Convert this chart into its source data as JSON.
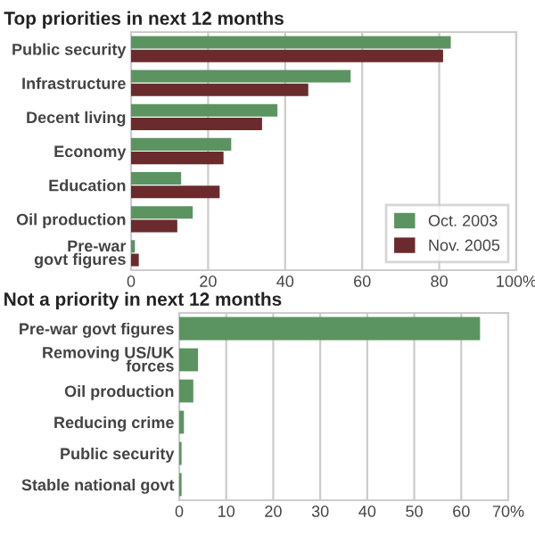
{
  "chart_data": [
    {
      "type": "bar",
      "orientation": "horizontal",
      "title": "Top priorities in next 12 months",
      "categories": [
        "Public security",
        "Infrastructure",
        "Decent living",
        "Economy",
        "Education",
        "Oil production",
        "Pre-war\ngovt figures"
      ],
      "series": [
        {
          "name": "Oct. 2003",
          "color": "#5b9461",
          "values": [
            83,
            57,
            38,
            26,
            13,
            16,
            1
          ]
        },
        {
          "name": "Nov. 2005",
          "color": "#6b2a2c",
          "values": [
            81,
            46,
            34,
            24,
            23,
            12,
            2
          ]
        }
      ],
      "xlim": [
        0,
        100
      ],
      "xticks": [
        0,
        20,
        40,
        60,
        80,
        {
          "value": 100,
          "label": "100%"
        }
      ],
      "grid": "x",
      "legend": "bottom right"
    },
    {
      "type": "bar",
      "orientation": "horizontal",
      "title": "Not a priority in next 12 months",
      "categories": [
        "Pre-war govt figures",
        "Removing US/UK\nforces",
        "Oil production",
        "Reducing crime",
        "Public security",
        "Stable national govt"
      ],
      "series": [
        {
          "color": "#5b9461",
          "values": [
            64,
            4,
            3,
            1,
            0.5,
            0.5
          ]
        }
      ],
      "xlim": [
        0,
        70
      ],
      "xticks": [
        0,
        10,
        20,
        30,
        40,
        50,
        60,
        {
          "value": 70,
          "label": "70%"
        }
      ],
      "grid": "x"
    }
  ]
}
